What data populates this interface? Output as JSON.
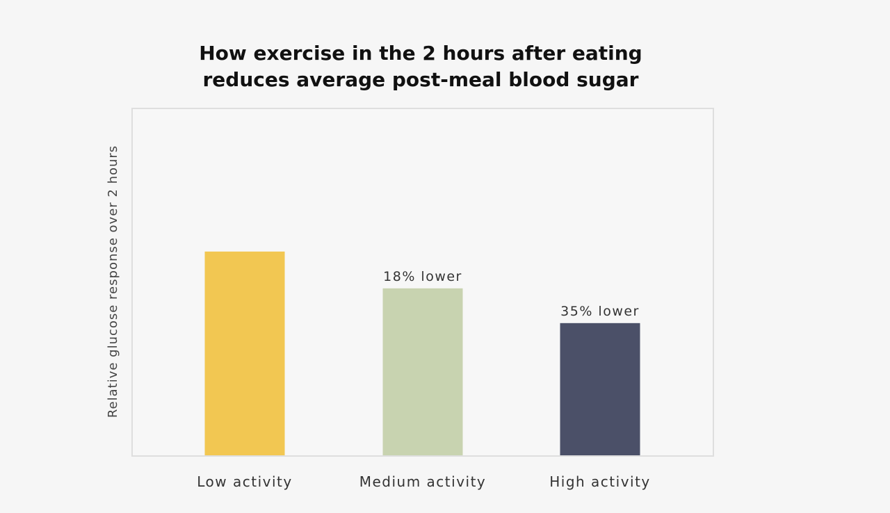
{
  "chart_data": {
    "type": "bar",
    "title_lines": [
      "How exercise in the 2 hours after eating",
      "reduces average post-meal blood sugar"
    ],
    "xlabel": "",
    "ylabel": "Relative glucose response over 2 hours",
    "categories": [
      "Low activity",
      "Medium activity",
      "High activity"
    ],
    "values": [
      100,
      82,
      65
    ],
    "data_labels": [
      "",
      "18% lower",
      "35% lower"
    ],
    "colors": [
      "#f2c752",
      "#c8d3b0",
      "#4b5068"
    ],
    "ylim": [
      0,
      170
    ],
    "grid": false,
    "legend": false
  }
}
